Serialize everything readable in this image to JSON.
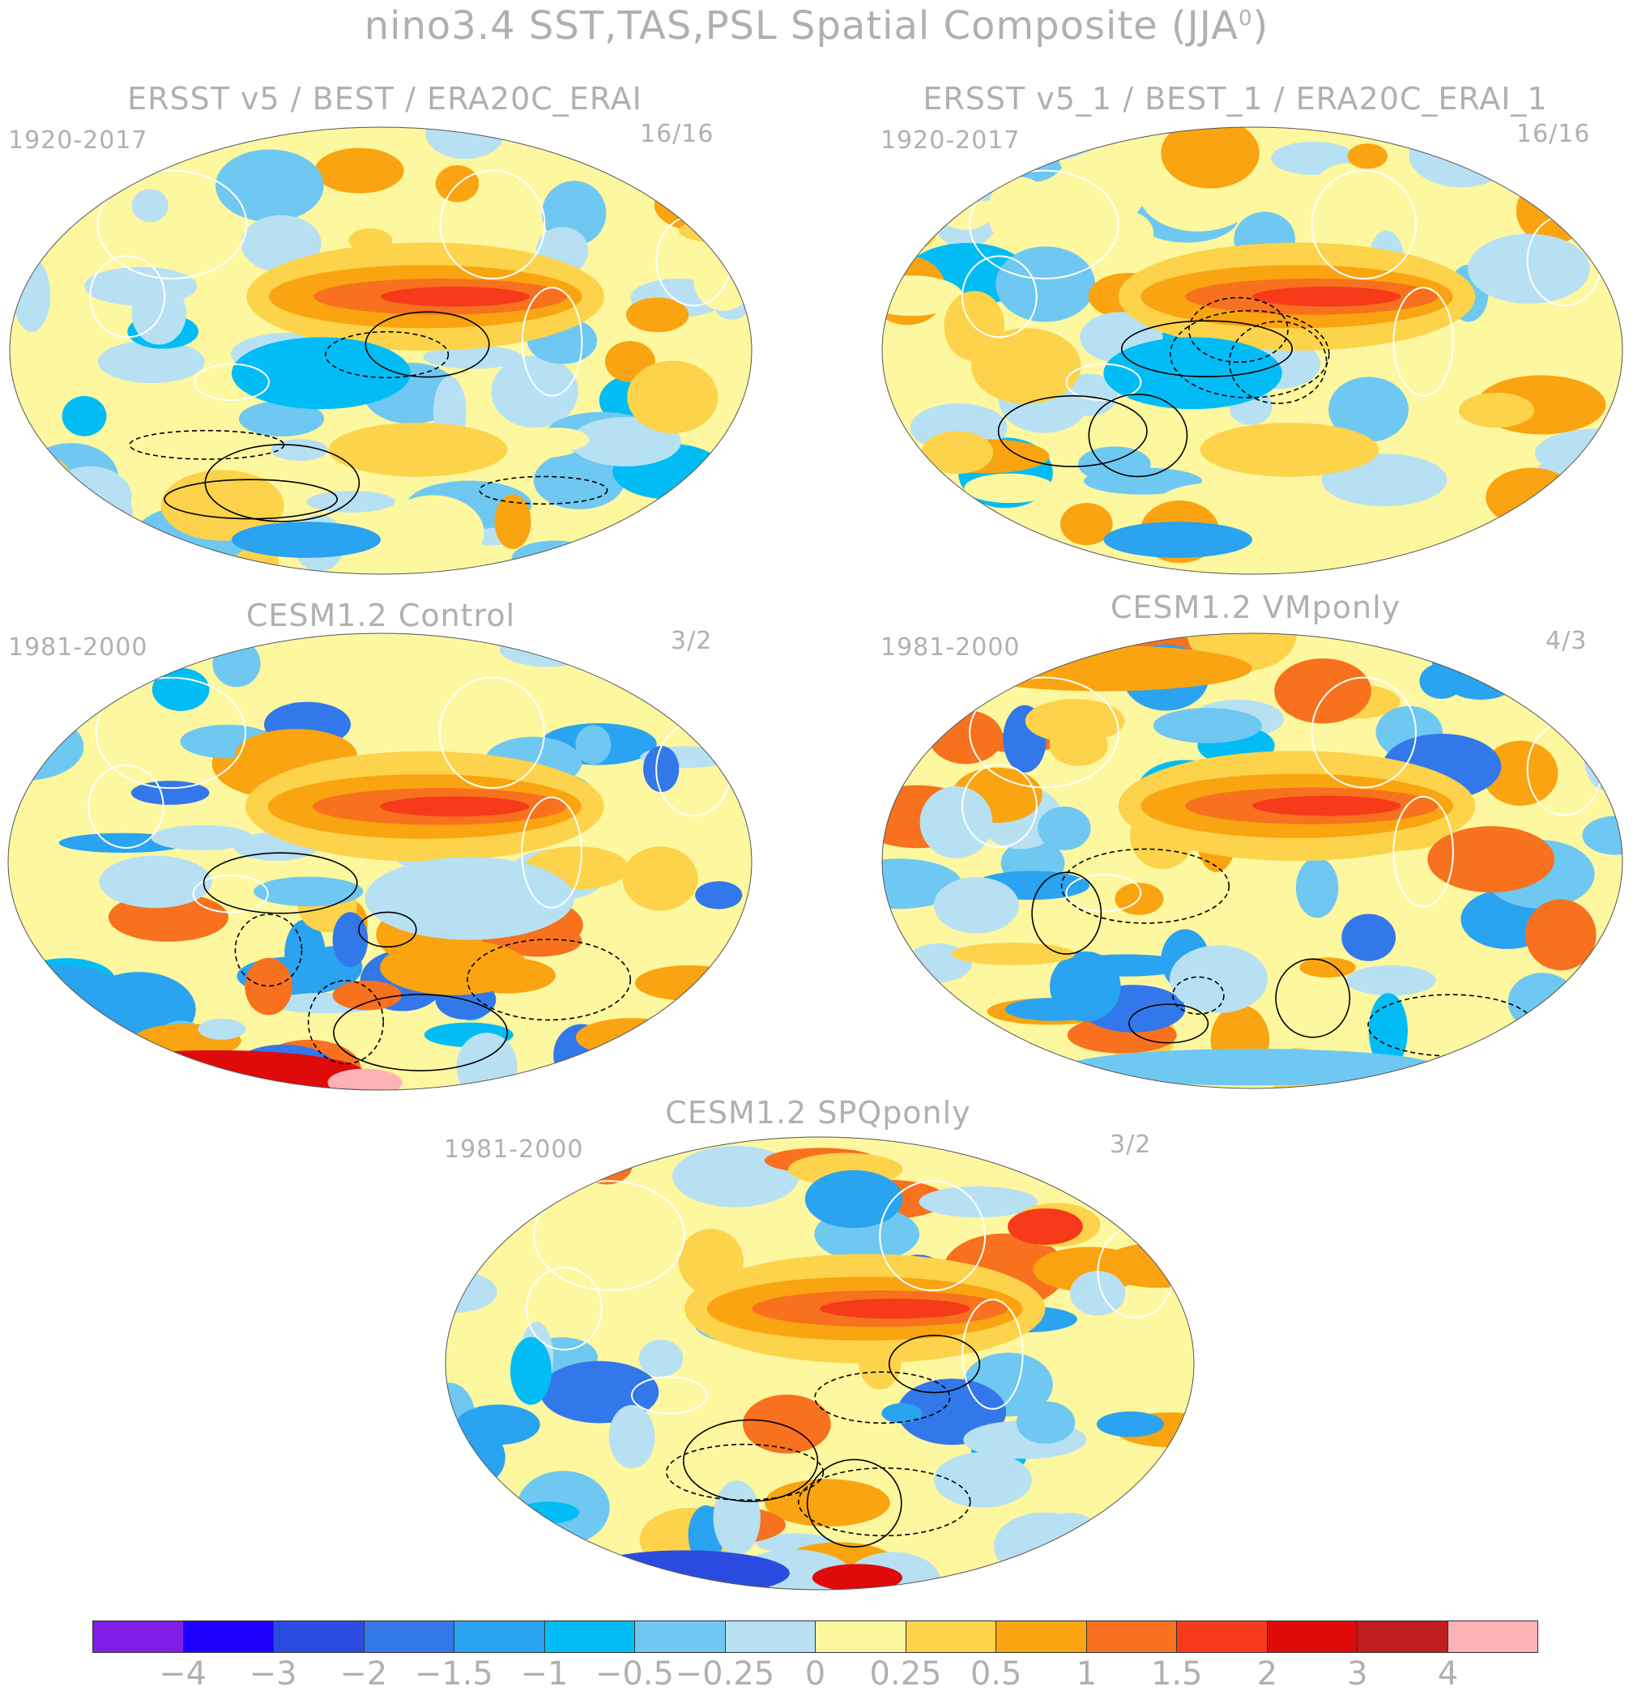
{
  "title": "nino3.4 SST,TAS,PSL Spatial Composite (JJA",
  "title_sup": "0",
  "title_end": ")",
  "panels": [
    {
      "title": "ERSST v5 / BEST / ERA20C_ERAI",
      "years": "1920-2017",
      "ratio": "16/16"
    },
    {
      "title": "ERSST v5_1 / BEST_1 / ERA20C_ERAI_1",
      "years": "1920-2017",
      "ratio": "16/16"
    },
    {
      "title": "CESM1.2 Control",
      "years": "1981-2000",
      "ratio": "3/2"
    },
    {
      "title": "CESM1.2 VMponly",
      "years": "1981-2000",
      "ratio": "4/3"
    },
    {
      "title": "CESM1.2 SPQponly",
      "years": "1981-2000",
      "ratio": "3/2"
    }
  ],
  "colorbar": {
    "colors": [
      "#7f1fe6",
      "#1f00ff",
      "#2b4be0",
      "#3378ea",
      "#2aa3f0",
      "#02bdf5",
      "#6ec8f2",
      "#b7e0f3",
      "#fdf7a0",
      "#fcd34a",
      "#f9a410",
      "#f7711e",
      "#f63a1a",
      "#df0b0b",
      "#c01e1e",
      "#fdb2b6"
    ],
    "labels": [
      "-4",
      "-3",
      "-2",
      "-1.5",
      "-1",
      "-0.5",
      "-0.25",
      "0",
      "0.25",
      "0.5",
      "1",
      "1.5",
      "2",
      "3",
      "4"
    ]
  }
}
